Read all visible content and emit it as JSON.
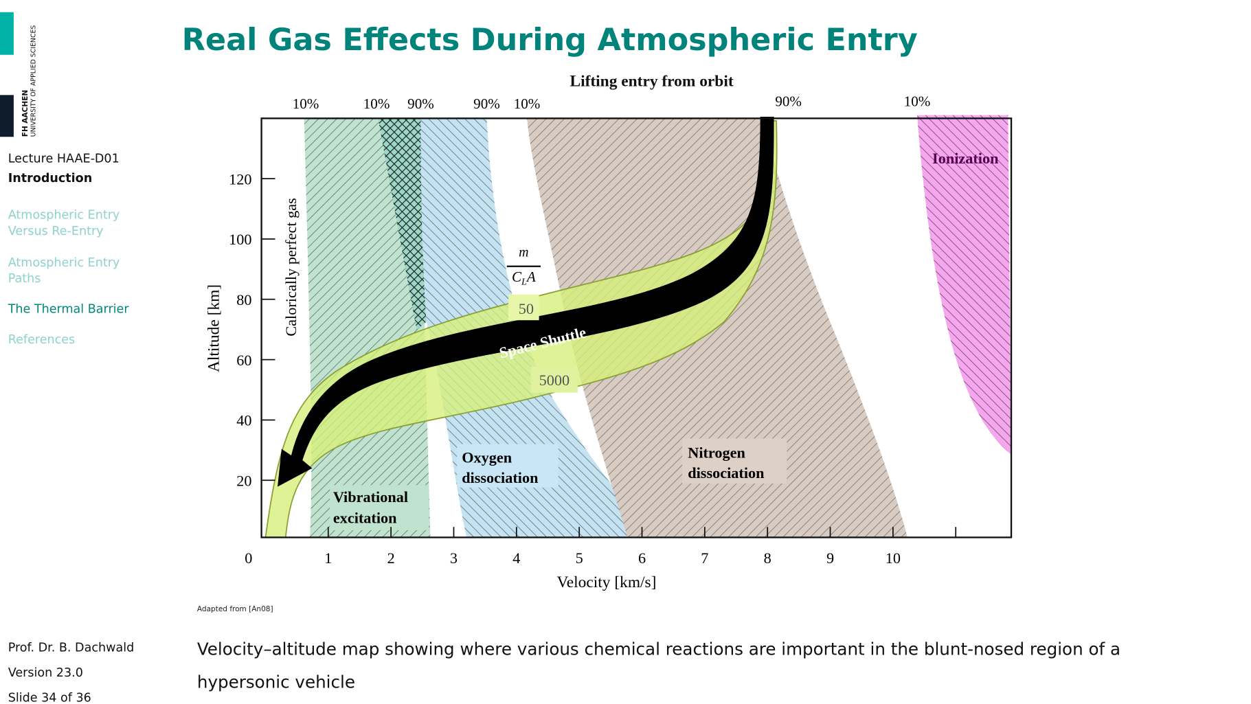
{
  "logo": {
    "name": "FH AACHEN",
    "subtitle": "UNIVERSITY OF APPLIED SCIENCES"
  },
  "sidebar": {
    "lecture": "Lecture HAAE-D01",
    "section": "Introduction",
    "nav": [
      [
        "Atmospheric Entry",
        "Versus Re-Entry"
      ],
      [
        "Atmospheric Entry",
        "Paths"
      ],
      [
        "The Thermal Barrier"
      ],
      [
        "References"
      ]
    ],
    "footer": [
      "Prof. Dr. B. Dachwald",
      "Version 23.0",
      "Slide 34 of 36"
    ]
  },
  "title": "Real Gas Effects During Atmospheric Entry",
  "figure": {
    "heading": "Lifting entry from orbit",
    "percent_labels": [
      "10%",
      "10%",
      "90%",
      "90%",
      "10%",
      "90%",
      "10%"
    ],
    "calorically": "Calorically perfect gas",
    "ratio": {
      "numerator": "m",
      "denominator": [
        "C",
        "L",
        "A"
      ]
    },
    "corridor_labels": [
      "50",
      "5000"
    ],
    "shuttle": "Space Shuttle",
    "regions": {
      "ionization": "Ionization",
      "nitrogen": [
        "Nitrogen",
        "dissociation"
      ],
      "oxygen": [
        "Oxygen",
        "dissociation"
      ],
      "vibrational": [
        "Vibrational",
        "excitation"
      ]
    },
    "y_label": "Altitude [km]",
    "x_label": "Velocity [km/s]",
    "xticks": [
      0,
      1,
      2,
      3,
      4,
      5,
      6,
      7,
      8,
      9,
      10
    ],
    "yticks": [
      20,
      40,
      60,
      80,
      100,
      120
    ]
  },
  "source": "Adapted from [An08]",
  "caption": [
    "Velocity–altitude map showing where various chemical reactions are important in the blunt-nosed region of a",
    "hypersonic vehicle"
  ]
}
